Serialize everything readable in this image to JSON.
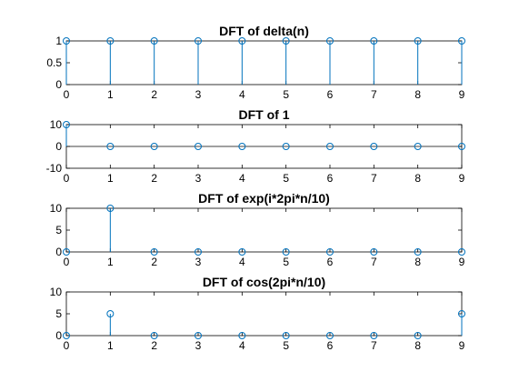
{
  "colors": {
    "series": "#0072bd",
    "axes": "#000000",
    "background": "#ffffff"
  },
  "chart_data": [
    {
      "type": "stem",
      "title": "DFT of delta(n)",
      "x": [
        0,
        1,
        2,
        3,
        4,
        5,
        6,
        7,
        8,
        9
      ],
      "values": [
        1,
        1,
        1,
        1,
        1,
        1,
        1,
        1,
        1,
        1
      ],
      "xlim": [
        0,
        9
      ],
      "ylim": [
        0,
        1
      ],
      "xticks": [
        "0",
        "1",
        "2",
        "3",
        "4",
        "5",
        "6",
        "7",
        "8",
        "9"
      ],
      "yticks": [
        0,
        0.5,
        1
      ],
      "ytick_labels": [
        "0",
        "0.5",
        "1"
      ],
      "grid": false
    },
    {
      "type": "stem",
      "title": "DFT of 1",
      "x": [
        0,
        1,
        2,
        3,
        4,
        5,
        6,
        7,
        8,
        9
      ],
      "values": [
        10,
        0,
        0,
        0,
        0,
        0,
        0,
        0,
        0,
        0
      ],
      "xlim": [
        0,
        9
      ],
      "ylim": [
        -10,
        10
      ],
      "xticks": [
        "0",
        "1",
        "2",
        "3",
        "4",
        "5",
        "6",
        "7",
        "8",
        "9"
      ],
      "yticks": [
        -10,
        0,
        10
      ],
      "ytick_labels": [
        "-10",
        "0",
        "10"
      ],
      "grid": false
    },
    {
      "type": "stem",
      "title": "DFT of exp(i*2pi*n/10)",
      "x": [
        0,
        1,
        2,
        3,
        4,
        5,
        6,
        7,
        8,
        9
      ],
      "values": [
        0,
        10,
        0,
        0,
        0,
        0,
        0,
        0,
        0,
        0
      ],
      "xlim": [
        0,
        9
      ],
      "ylim": [
        0,
        10
      ],
      "xticks": [
        "0",
        "1",
        "2",
        "3",
        "4",
        "5",
        "6",
        "7",
        "8",
        "9"
      ],
      "yticks": [
        0,
        5,
        10
      ],
      "ytick_labels": [
        "0",
        "5",
        "10"
      ],
      "grid": false
    },
    {
      "type": "stem",
      "title": "DFT of cos(2pi*n/10)",
      "x": [
        0,
        1,
        2,
        3,
        4,
        5,
        6,
        7,
        8,
        9
      ],
      "values": [
        0,
        5,
        0,
        0,
        0,
        0,
        0,
        0,
        0,
        5
      ],
      "xlim": [
        0,
        9
      ],
      "ylim": [
        0,
        10
      ],
      "xticks": [
        "0",
        "1",
        "2",
        "3",
        "4",
        "5",
        "6",
        "7",
        "8",
        "9"
      ],
      "yticks": [
        0,
        5,
        10
      ],
      "ytick_labels": [
        "0",
        "5",
        "10"
      ],
      "grid": false
    }
  ]
}
